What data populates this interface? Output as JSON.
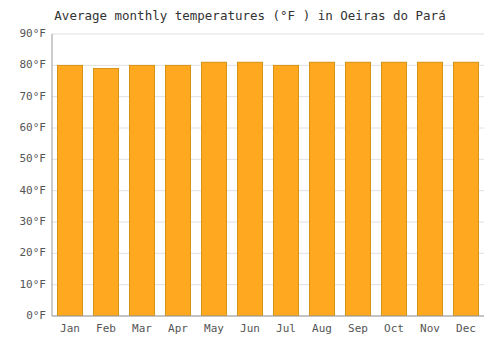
{
  "chart_data": {
    "type": "bar",
    "title": "Average monthly temperatures (°F ) in Oeiras do Pará",
    "categories": [
      "Jan",
      "Feb",
      "Mar",
      "Apr",
      "May",
      "Jun",
      "Jul",
      "Aug",
      "Sep",
      "Oct",
      "Nov",
      "Dec"
    ],
    "values": [
      80,
      79,
      80,
      80,
      81,
      81,
      80,
      81,
      81,
      81,
      81,
      81
    ],
    "color": "#FFA820",
    "ylim": [
      0,
      90
    ],
    "yticks": [
      {
        "value": 0,
        "label": "0°F"
      },
      {
        "value": 10,
        "label": "10°F"
      },
      {
        "value": 20,
        "label": "20°F"
      },
      {
        "value": 30,
        "label": "30°F"
      },
      {
        "value": 40,
        "label": "40°F"
      },
      {
        "value": 50,
        "label": "50°F"
      },
      {
        "value": 60,
        "label": "60°F"
      },
      {
        "value": 70,
        "label": "70°F"
      },
      {
        "value": 80,
        "label": "80°F"
      },
      {
        "value": 90,
        "label": "90°F"
      }
    ],
    "grid": true
  }
}
